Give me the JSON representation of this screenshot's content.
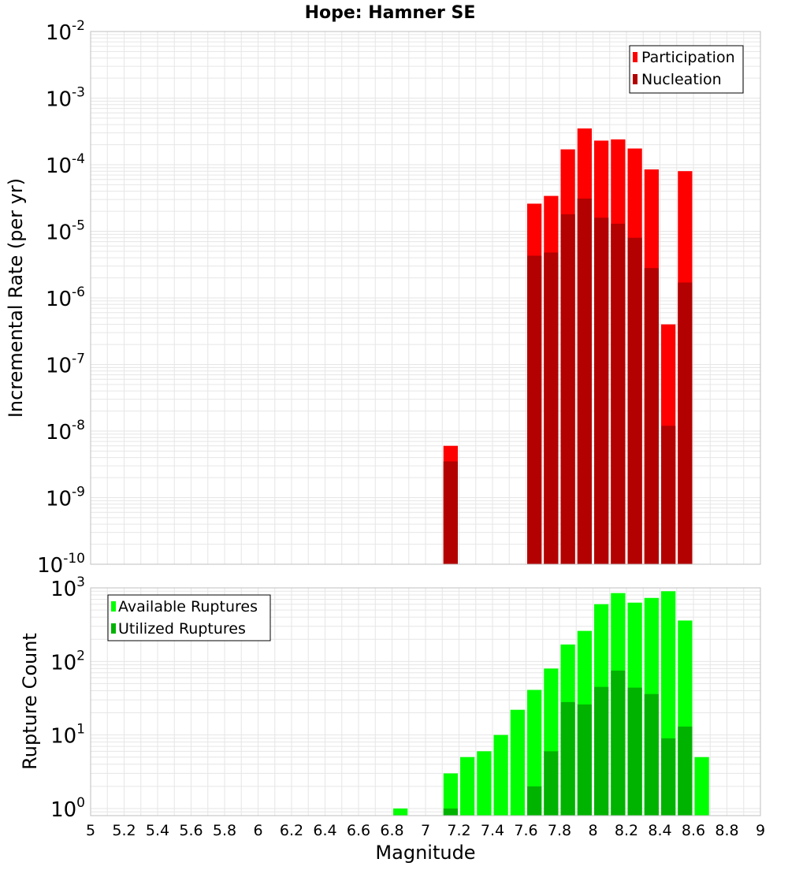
{
  "title": "Hope: Hamner SE",
  "xlabel": "Magnitude",
  "x_ticks": [
    "5",
    "5.2",
    "5.4",
    "5.6",
    "5.8",
    "6",
    "6.2",
    "6.4",
    "6.6",
    "6.8",
    "7",
    "7.2",
    "7.4",
    "7.6",
    "7.8",
    "8",
    "8.2",
    "8.4",
    "8.6",
    "8.8",
    "9"
  ],
  "colors": {
    "participation": "#ff0000",
    "nucleation": "#b30000",
    "available": "#00ff00",
    "utilized": "#00b300",
    "grid": "#e6e6e6",
    "frame": "#bfbfbf"
  },
  "chart_data": [
    {
      "type": "bar",
      "title": "Hope: Hamner SE",
      "xlabel": "",
      "ylabel": "Incremental Rate (per yr)",
      "xlim": [
        5,
        9
      ],
      "ylim": [
        1e-10,
        0.01
      ],
      "yscale": "log",
      "y_tick_exponents": [
        "-10",
        "-9",
        "-8",
        "-7",
        "-6",
        "-5",
        "-4",
        "-3",
        "-2"
      ],
      "bar_width": 0.1,
      "legend_position": "top-right",
      "grid": true,
      "series": [
        {
          "name": "Participation",
          "x": [
            7.15,
            7.65,
            7.75,
            7.85,
            7.95,
            8.05,
            8.15,
            8.25,
            8.35,
            8.45,
            8.55
          ],
          "values": [
            6e-09,
            2.6e-05,
            3.4e-05,
            0.00017,
            0.00035,
            0.00023,
            0.00024,
            0.000175,
            8.5e-05,
            4e-07,
            8e-05
          ]
        },
        {
          "name": "Nucleation",
          "x": [
            7.15,
            7.65,
            7.75,
            7.85,
            7.95,
            8.05,
            8.15,
            8.25,
            8.35,
            8.45,
            8.55
          ],
          "values": [
            3.5e-09,
            4.3e-06,
            4.8e-06,
            1.8e-05,
            3.1e-05,
            1.6e-05,
            1.3e-05,
            8e-06,
            2.8e-06,
            1.2e-08,
            1.7e-06
          ]
        }
      ]
    },
    {
      "type": "bar",
      "title": "",
      "xlabel": "Magnitude",
      "ylabel": "Rupture Count",
      "xlim": [
        5,
        9
      ],
      "ylim": [
        0.8,
        1000
      ],
      "yscale": "log",
      "y_tick_exponents": [
        "0",
        "1",
        "2",
        "3"
      ],
      "bar_width": 0.1,
      "legend_position": "top-left",
      "grid": true,
      "series": [
        {
          "name": "Available Ruptures",
          "x": [
            6.85,
            7.15,
            7.25,
            7.35,
            7.45,
            7.55,
            7.65,
            7.75,
            7.85,
            7.95,
            8.05,
            8.15,
            8.25,
            8.35,
            8.45,
            8.55,
            8.65
          ],
          "values": [
            1,
            3,
            5,
            6,
            10,
            22,
            41,
            80,
            170,
            260,
            600,
            850,
            630,
            730,
            900,
            360,
            5
          ]
        },
        {
          "name": "Utilized Ruptures",
          "x": [
            7.15,
            7.65,
            7.75,
            7.85,
            7.95,
            8.05,
            8.15,
            8.25,
            8.35,
            8.45,
            8.55
          ],
          "values": [
            1,
            2,
            6,
            28,
            26,
            45,
            75,
            44,
            36,
            9,
            13
          ]
        }
      ]
    }
  ]
}
